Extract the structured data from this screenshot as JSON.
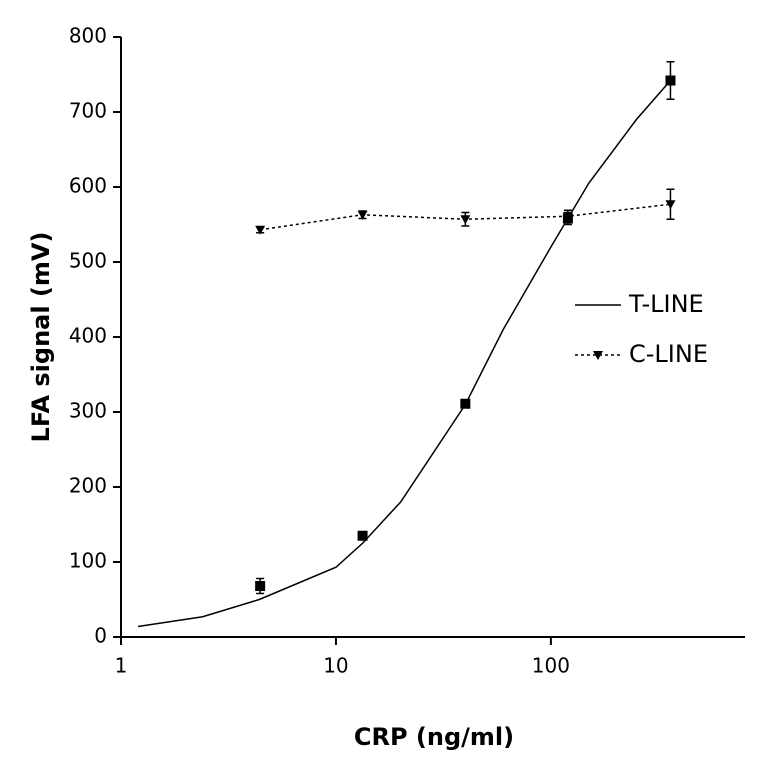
{
  "chart_data": {
    "type": "line",
    "xlabel": "CRP (ng/ml)",
    "ylabel": "LFA signal (mV)",
    "xscale": "log",
    "xlim": [
      1,
      800
    ],
    "xticks": [
      1,
      10,
      100
    ],
    "ylim": [
      0,
      800
    ],
    "yticks": [
      0,
      100,
      200,
      300,
      400,
      500,
      600,
      700,
      800
    ],
    "legend": "right",
    "series": [
      {
        "name": "T-LINE",
        "color": "#000000",
        "marker": "square",
        "linestyle": "solid",
        "x": [
          4.44,
          13.3,
          40,
          120,
          360
        ],
        "values": [
          68,
          135,
          311,
          558,
          742
        ],
        "errors": [
          10,
          4,
          5,
          8,
          25
        ],
        "fit": {
          "x": [
            1.2,
            2.4,
            4.4,
            10,
            13.3,
            20,
            40,
            60,
            100,
            150,
            250,
            360
          ],
          "values": [
            14,
            27,
            50,
            93,
            125,
            180,
            310,
            410,
            520,
            605,
            690,
            742
          ]
        }
      },
      {
        "name": "C-LINE",
        "color": "#000000",
        "marker": "triangle-down",
        "linestyle": "dotted",
        "x": [
          4.44,
          13.3,
          40,
          120,
          360
        ],
        "values": [
          543,
          563,
          557,
          561,
          577
        ],
        "errors": [
          4,
          5,
          9,
          8,
          20
        ]
      }
    ]
  }
}
